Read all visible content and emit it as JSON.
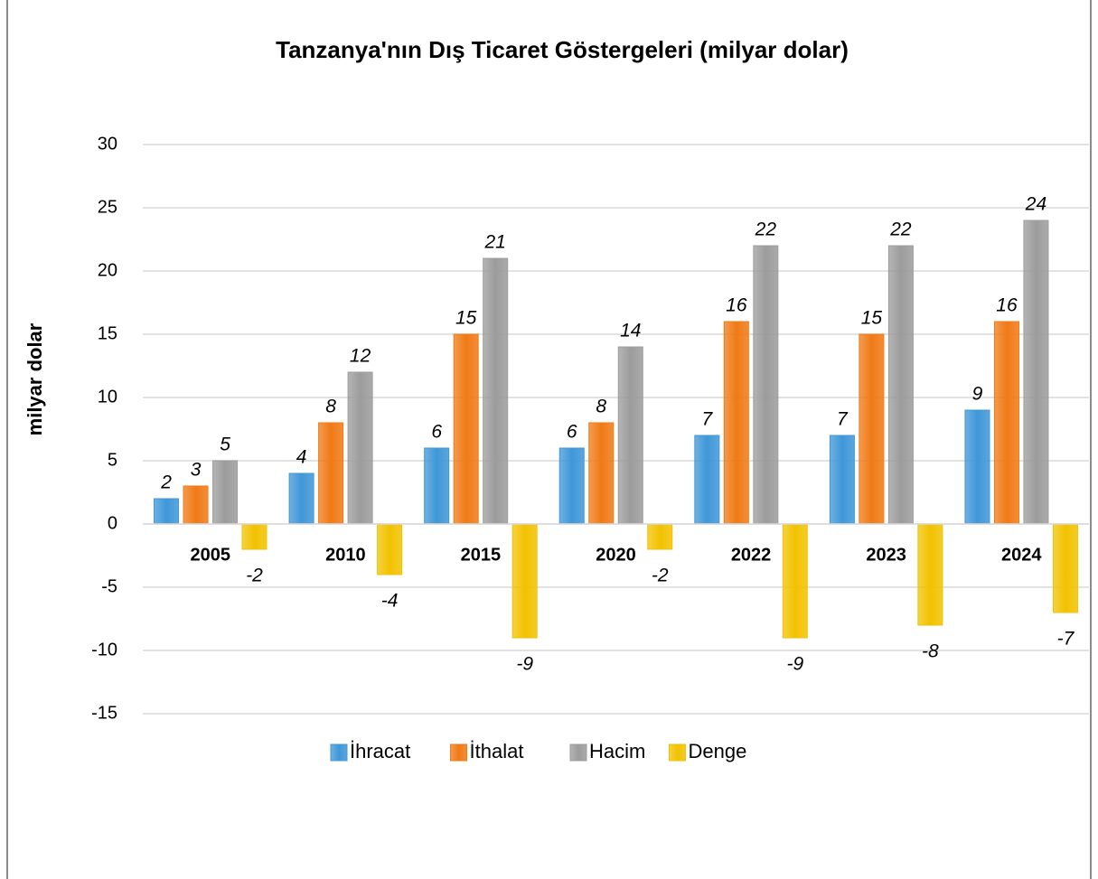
{
  "chart_data": {
    "type": "bar",
    "title": "Tanzanya'nın Dış Ticaret Göstergeleri (milyar dolar)",
    "y_label": "milyar dolar",
    "categories": [
      "2005",
      "2010",
      "2015",
      "2020",
      "2022",
      "2023",
      "2024"
    ],
    "series": [
      {
        "name": "İhracat",
        "color": "#3f97d8",
        "values": [
          2,
          4,
          6,
          6,
          7,
          7,
          9
        ]
      },
      {
        "name": "İthalat",
        "color": "#f07a15",
        "values": [
          3,
          8,
          15,
          8,
          16,
          15,
          16
        ]
      },
      {
        "name": "Hacim",
        "color": "#9c9c9c",
        "values": [
          5,
          12,
          21,
          14,
          22,
          22,
          24
        ]
      },
      {
        "name": "Denge",
        "color": "#f2c200",
        "values": [
          -2,
          -4,
          -9,
          -2,
          -9,
          -8,
          -7
        ]
      }
    ],
    "ylim": [
      -15,
      30
    ],
    "yticks": [
      -15,
      -10,
      -5,
      0,
      5,
      10,
      15,
      20,
      25,
      30
    ],
    "grid": true,
    "legend": "bottom"
  }
}
